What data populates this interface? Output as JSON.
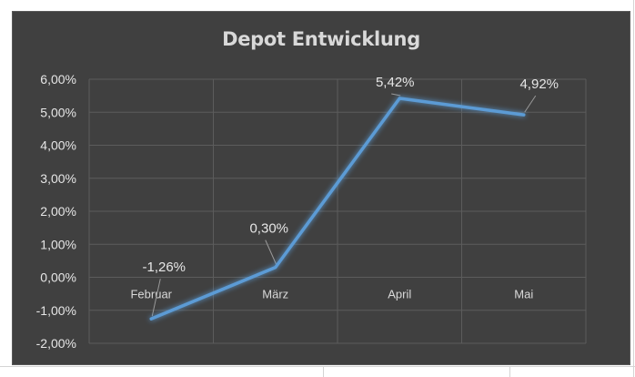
{
  "chart_data": {
    "type": "line",
    "title": "Depot Entwicklung",
    "categories": [
      "Februar",
      "März",
      "April",
      "Mai"
    ],
    "values": [
      -1.26,
      0.3,
      5.42,
      4.92
    ],
    "data_labels": [
      "-1,26%",
      "0,30%",
      "5,42%",
      "4,92%"
    ],
    "y_ticks": [
      "-2,00%",
      "-1,00%",
      "0,00%",
      "1,00%",
      "2,00%",
      "3,00%",
      "4,00%",
      "5,00%",
      "6,00%"
    ],
    "ylim": [
      -2,
      6
    ],
    "ytick_step": 1,
    "grid": true,
    "line_color": "#5b9bd5",
    "background_color": "#404040"
  }
}
